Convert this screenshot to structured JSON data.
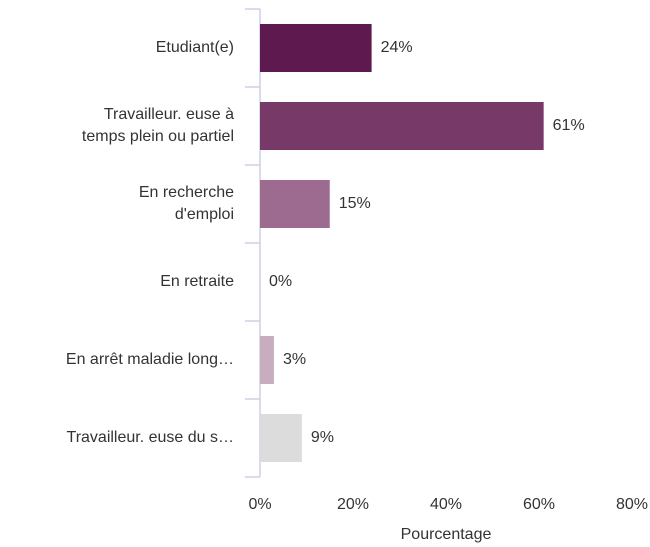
{
  "chart_data": {
    "type": "barh",
    "categories": [
      [
        "Etudiant(e)"
      ],
      [
        "Travailleur. euse à",
        "temps plein ou partiel"
      ],
      [
        "En recherche",
        "d'emploi"
      ],
      [
        "En retraite"
      ],
      [
        "En arrêt maladie long…"
      ],
      [
        "Travailleur. euse du s…"
      ]
    ],
    "values": [
      24,
      61,
      15,
      0,
      3,
      9
    ],
    "value_labels": [
      "24%",
      "61%",
      "15%",
      "0%",
      "3%",
      "9%"
    ],
    "colors": [
      "#5e1a4f",
      "#773a68",
      "#9c6b8f",
      "#b898ae",
      "#c8adbf",
      "#dcdcdc"
    ],
    "xlim": [
      0,
      80
    ],
    "xticks": [
      {
        "value": 0,
        "label": "0%"
      },
      {
        "value": 20,
        "label": "20%"
      },
      {
        "value": 40,
        "label": "40%"
      },
      {
        "value": 60,
        "label": "60%"
      },
      {
        "value": 80,
        "label": "80%"
      }
    ],
    "xlabel": "Pourcentage"
  }
}
